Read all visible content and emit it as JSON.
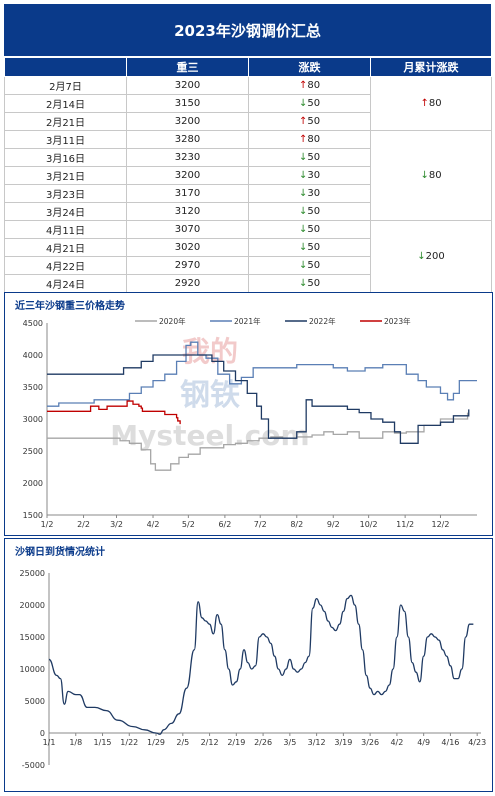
{
  "header": {
    "title": "2023年沙钢调价汇总"
  },
  "table": {
    "columns": [
      "",
      "重三",
      "涨跌",
      "月累计涨跌"
    ],
    "rows": [
      {
        "date": "2月7日",
        "price": "3200",
        "dir": "up",
        "change": "80"
      },
      {
        "date": "2月14日",
        "price": "3150",
        "dir": "down",
        "change": "50"
      },
      {
        "date": "2月21日",
        "price": "3200",
        "dir": "up",
        "change": "50"
      },
      {
        "date": "3月11日",
        "price": "3280",
        "dir": "up",
        "change": "80"
      },
      {
        "date": "3月16日",
        "price": "3230",
        "dir": "down",
        "change": "50"
      },
      {
        "date": "3月21日",
        "price": "3200",
        "dir": "down",
        "change": "30"
      },
      {
        "date": "3月23日",
        "price": "3170",
        "dir": "down",
        "change": "30"
      },
      {
        "date": "3月24日",
        "price": "3120",
        "dir": "down",
        "change": "50"
      },
      {
        "date": "4月11日",
        "price": "3070",
        "dir": "down",
        "change": "50"
      },
      {
        "date": "4月21日",
        "price": "3020",
        "dir": "down",
        "change": "50"
      },
      {
        "date": "4月22日",
        "price": "2970",
        "dir": "down",
        "change": "50"
      },
      {
        "date": "4月24日",
        "price": "2920",
        "dir": "down",
        "change": "50"
      }
    ],
    "monthly": [
      {
        "dir": "up",
        "value": "80",
        "span": 3
      },
      {
        "dir": "down",
        "value": "80",
        "span": 5
      },
      {
        "dir": "down",
        "value": "200",
        "span": 4
      }
    ]
  },
  "watermark": {
    "line1": "我的",
    "line2": "钢铁",
    "brand": "Mysteel.com"
  },
  "chart_data": [
    {
      "type": "line",
      "title": "近三年沙钢重三价格走势",
      "xlabel": "",
      "ylabel": "",
      "ylim": [
        1500,
        4500
      ],
      "yticks": [
        1500,
        2000,
        2500,
        3000,
        3500,
        4000,
        4500
      ],
      "x_tick_labels": [
        "1/2",
        "2/2",
        "3/2",
        "4/2",
        "5/2",
        "6/2",
        "7/2",
        "8/2",
        "9/2",
        "10/2",
        "11/2",
        "12/2"
      ],
      "x_tick_days": [
        0,
        31,
        59,
        90,
        120,
        151,
        181,
        212,
        243,
        273,
        304,
        334
      ],
      "legend_position": "top",
      "grid": false,
      "series": [
        {
          "name": "2020年",
          "color": "#a6a6a6",
          "points": [
            [
              0,
              2700
            ],
            [
              20,
              2700
            ],
            [
              40,
              2700
            ],
            [
              58,
              2700
            ],
            [
              62,
              2660
            ],
            [
              70,
              2620
            ],
            [
              80,
              2520
            ],
            [
              88,
              2300
            ],
            [
              92,
              2200
            ],
            [
              100,
              2200
            ],
            [
              105,
              2300
            ],
            [
              112,
              2400
            ],
            [
              120,
              2450
            ],
            [
              130,
              2550
            ],
            [
              140,
              2550
            ],
            [
              150,
              2600
            ],
            [
              160,
              2620
            ],
            [
              170,
              2660
            ],
            [
              180,
              2700
            ],
            [
              190,
              2720
            ],
            [
              200,
              2700
            ],
            [
              212,
              2720
            ],
            [
              225,
              2750
            ],
            [
              235,
              2800
            ],
            [
              243,
              2760
            ],
            [
              255,
              2800
            ],
            [
              265,
              2700
            ],
            [
              275,
              2700
            ],
            [
              285,
              2800
            ],
            [
              295,
              2780
            ],
            [
              305,
              2800
            ],
            [
              320,
              2900
            ],
            [
              334,
              3000
            ],
            [
              345,
              3000
            ],
            [
              357,
              3100
            ]
          ]
        },
        {
          "name": "2021年",
          "color": "#5a7fb5",
          "points": [
            [
              0,
              3200
            ],
            [
              10,
              3250
            ],
            [
              20,
              3250
            ],
            [
              31,
              3250
            ],
            [
              40,
              3300
            ],
            [
              59,
              3300
            ],
            [
              70,
              3400
            ],
            [
              80,
              3500
            ],
            [
              90,
              3600
            ],
            [
              100,
              3700
            ],
            [
              110,
              3900
            ],
            [
              118,
              4150
            ],
            [
              122,
              4200
            ],
            [
              128,
              4000
            ],
            [
              135,
              3950
            ],
            [
              145,
              3700
            ],
            [
              155,
              3550
            ],
            [
              165,
              3650
            ],
            [
              175,
              3800
            ],
            [
              185,
              3800
            ],
            [
              200,
              3800
            ],
            [
              212,
              3850
            ],
            [
              225,
              3850
            ],
            [
              243,
              3800
            ],
            [
              255,
              3750
            ],
            [
              270,
              3800
            ],
            [
              285,
              3850
            ],
            [
              300,
              3850
            ],
            [
              305,
              3700
            ],
            [
              315,
              3600
            ],
            [
              322,
              3500
            ],
            [
              334,
              3400
            ],
            [
              340,
              3300
            ],
            [
              345,
              3400
            ],
            [
              350,
              3600
            ],
            [
              365,
              3600
            ]
          ]
        },
        {
          "name": "2022年",
          "color": "#1f3a63",
          "points": [
            [
              0,
              3700
            ],
            [
              20,
              3700
            ],
            [
              31,
              3700
            ],
            [
              45,
              3700
            ],
            [
              59,
              3700
            ],
            [
              65,
              3800
            ],
            [
              80,
              3900
            ],
            [
              90,
              4000
            ],
            [
              100,
              4000
            ],
            [
              120,
              4000
            ],
            [
              130,
              4000
            ],
            [
              140,
              3900
            ],
            [
              150,
              3750
            ],
            [
              160,
              3600
            ],
            [
              170,
              3400
            ],
            [
              178,
              3200
            ],
            [
              182,
              3000
            ],
            [
              188,
              2700
            ],
            [
              195,
              2700
            ],
            [
              205,
              2700
            ],
            [
              212,
              2800
            ],
            [
              220,
              3300
            ],
            [
              225,
              3200
            ],
            [
              232,
              3200
            ],
            [
              243,
              3200
            ],
            [
              255,
              3150
            ],
            [
              265,
              3100
            ],
            [
              275,
              3000
            ],
            [
              285,
              2950
            ],
            [
              295,
              2800
            ],
            [
              300,
              2620
            ],
            [
              308,
              2620
            ],
            [
              315,
              2900
            ],
            [
              325,
              2900
            ],
            [
              334,
              2950
            ],
            [
              345,
              3050
            ],
            [
              352,
              3050
            ],
            [
              358,
              3150
            ]
          ]
        },
        {
          "name": "2023年",
          "color": "#c00000",
          "points": [
            [
              0,
              3120
            ],
            [
              10,
              3120
            ],
            [
              20,
              3120
            ],
            [
              30,
              3120
            ],
            [
              37,
              3200
            ],
            [
              44,
              3150
            ],
            [
              51,
              3200
            ],
            [
              68,
              3280
            ],
            [
              73,
              3230
            ],
            [
              78,
              3200
            ],
            [
              80,
              3170
            ],
            [
              81,
              3120
            ],
            [
              95,
              3120
            ],
            [
              100,
              3070
            ],
            [
              110,
              3020
            ],
            [
              111,
              2970
            ],
            [
              113,
              2920
            ]
          ]
        }
      ]
    },
    {
      "type": "line",
      "title": "沙钢日到货情况统计",
      "xlabel": "",
      "ylabel": "",
      "ylim": [
        -5000,
        25000
      ],
      "yticks": [
        -5000,
        0,
        5000,
        10000,
        15000,
        20000,
        25000
      ],
      "x_tick_labels": [
        "1/1",
        "1/8",
        "1/15",
        "1/22",
        "1/29",
        "2/5",
        "2/12",
        "2/19",
        "2/26",
        "3/5",
        "3/12",
        "3/19",
        "3/26",
        "4/2",
        "4/9",
        "4/16",
        "4/23"
      ],
      "series": [
        {
          "name": "",
          "color": "#1f3a63",
          "points": [
            [
              0,
              11500
            ],
            [
              2,
              9000
            ],
            [
              3,
              8500
            ],
            [
              4,
              4500
            ],
            [
              5,
              6500
            ],
            [
              7,
              6000
            ],
            [
              8,
              6000
            ],
            [
              10,
              4000
            ],
            [
              12,
              4000
            ],
            [
              15,
              3500
            ],
            [
              18,
              2000
            ],
            [
              22,
              1000
            ],
            [
              25,
              500
            ],
            [
              28,
              0
            ],
            [
              29,
              -200
            ],
            [
              30,
              500
            ],
            [
              32,
              1500
            ],
            [
              34,
              3000
            ],
            [
              36,
              7000
            ],
            [
              38,
              13000
            ],
            [
              39,
              20500
            ],
            [
              40,
              18000
            ],
            [
              41,
              17500
            ],
            [
              42,
              17000
            ],
            [
              43,
              15500
            ],
            [
              44,
              18500
            ],
            [
              45,
              17000
            ],
            [
              46,
              13000
            ],
            [
              47,
              10000
            ],
            [
              48,
              7500
            ],
            [
              49,
              8000
            ],
            [
              50,
              10000
            ],
            [
              51,
              13000
            ],
            [
              52,
              11000
            ],
            [
              53,
              10000
            ],
            [
              54,
              10500
            ],
            [
              55,
              15000
            ],
            [
              56,
              15500
            ],
            [
              57,
              15000
            ],
            [
              58,
              14000
            ],
            [
              59,
              12000
            ],
            [
              60,
              10000
            ],
            [
              61,
              9000
            ],
            [
              62,
              10000
            ],
            [
              63,
              11500
            ],
            [
              64,
              10000
            ],
            [
              65,
              9500
            ],
            [
              66,
              10000
            ],
            [
              67,
              11000
            ],
            [
              68,
              12000
            ],
            [
              69,
              19500
            ],
            [
              70,
              21000
            ],
            [
              71,
              20000
            ],
            [
              72,
              19000
            ],
            [
              73,
              17500
            ],
            [
              74,
              16500
            ],
            [
              75,
              16000
            ],
            [
              76,
              17000
            ],
            [
              77,
              19000
            ],
            [
              78,
              21000
            ],
            [
              79,
              21500
            ],
            [
              80,
              20000
            ],
            [
              81,
              17000
            ],
            [
              82,
              13000
            ],
            [
              83,
              9000
            ],
            [
              84,
              7000
            ],
            [
              85,
              6000
            ],
            [
              86,
              6500
            ],
            [
              87,
              6000
            ],
            [
              88,
              6500
            ],
            [
              89,
              7500
            ],
            [
              90,
              10000
            ],
            [
              91,
              15000
            ],
            [
              92,
              20000
            ],
            [
              93,
              19000
            ],
            [
              94,
              15000
            ],
            [
              95,
              11000
            ],
            [
              96,
              9500
            ],
            [
              97,
              8000
            ],
            [
              98,
              12000
            ],
            [
              99,
              15000
            ],
            [
              100,
              15500
            ],
            [
              101,
              15000
            ],
            [
              102,
              14500
            ],
            [
              103,
              13000
            ],
            [
              104,
              12000
            ],
            [
              105,
              10500
            ],
            [
              106,
              8500
            ],
            [
              107,
              8500
            ],
            [
              108,
              10000
            ],
            [
              109,
              15000
            ],
            [
              110,
              17000
            ],
            [
              111,
              17000
            ]
          ]
        }
      ]
    }
  ]
}
